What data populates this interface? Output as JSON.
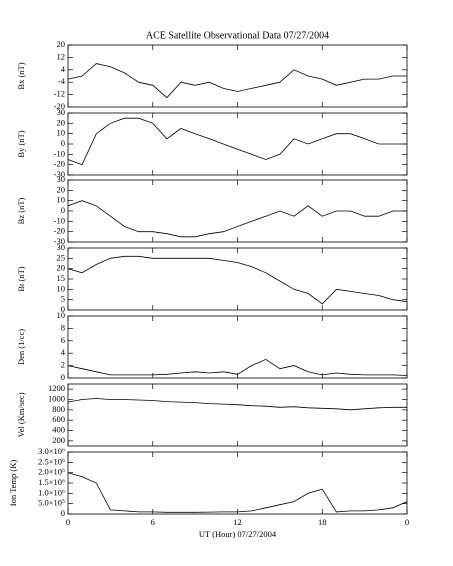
{
  "chart_data": [
    {
      "type": "line",
      "title": "ACE Satellite Observational Data   07/27/2004",
      "ylabel": "Bx (nT)",
      "x": [
        0,
        1,
        2,
        3,
        4,
        5,
        6,
        7,
        8,
        9,
        10,
        11,
        12,
        13,
        14,
        15,
        16,
        17,
        18,
        19,
        20,
        21,
        22,
        23,
        24
      ],
      "values": [
        -2,
        0,
        8,
        6,
        2,
        -4,
        -6,
        -14,
        -4,
        -6,
        -4,
        -8,
        -10,
        -8,
        -6,
        -4,
        4,
        0,
        -2,
        -6,
        -4,
        -2,
        -2,
        0,
        0
      ],
      "color": "#000000",
      "xlim": [
        0,
        24
      ],
      "xticks": [
        0,
        6,
        12,
        18,
        24
      ],
      "ylim": [
        -20,
        20
      ],
      "yticks": [
        -20,
        -12,
        -4,
        4,
        12,
        20
      ]
    },
    {
      "type": "line",
      "ylabel": "By (nT)",
      "x": [
        0,
        1,
        2,
        3,
        4,
        5,
        6,
        7,
        8,
        9,
        10,
        11,
        12,
        13,
        14,
        15,
        16,
        17,
        18,
        19,
        20,
        21,
        22,
        23,
        24
      ],
      "values": [
        -15,
        -20,
        10,
        20,
        25,
        25,
        20,
        5,
        15,
        10,
        5,
        0,
        -5,
        -10,
        -15,
        -10,
        5,
        0,
        5,
        10,
        10,
        5,
        0,
        0,
        0
      ],
      "color": "#000000",
      "xlim": [
        0,
        24
      ],
      "xticks": [
        0,
        6,
        12,
        18,
        24
      ],
      "ylim": [
        -30,
        30
      ],
      "yticks": [
        -30,
        -20,
        -10,
        0,
        10,
        20,
        30
      ]
    },
    {
      "type": "line",
      "ylabel": "Bz (nT)",
      "x": [
        0,
        1,
        2,
        3,
        4,
        5,
        6,
        7,
        8,
        9,
        10,
        11,
        12,
        13,
        14,
        15,
        16,
        17,
        18,
        19,
        20,
        21,
        22,
        23,
        24
      ],
      "values": [
        5,
        10,
        5,
        -5,
        -15,
        -20,
        -20,
        -22,
        -25,
        -25,
        -22,
        -20,
        -15,
        -10,
        -5,
        0,
        -5,
        5,
        -5,
        0,
        0,
        -5,
        -5,
        0,
        0
      ],
      "color": "#000000",
      "xlim": [
        0,
        24
      ],
      "xticks": [
        0,
        6,
        12,
        18,
        24
      ],
      "ylim": [
        -30,
        30
      ],
      "yticks": [
        -30,
        -20,
        -10,
        0,
        10,
        20,
        30
      ]
    },
    {
      "type": "line",
      "ylabel": "Bt (nT)",
      "x": [
        0,
        1,
        2,
        3,
        4,
        5,
        6,
        7,
        8,
        9,
        10,
        11,
        12,
        13,
        14,
        15,
        16,
        17,
        18,
        19,
        20,
        21,
        22,
        23,
        24
      ],
      "values": [
        20,
        18,
        22,
        25,
        26,
        26,
        25,
        25,
        25,
        25,
        25,
        24,
        23,
        21,
        18,
        14,
        10,
        8,
        3,
        10,
        9,
        8,
        7,
        5,
        4
      ],
      "color": "#000000",
      "xlim": [
        0,
        24
      ],
      "xticks": [
        0,
        6,
        12,
        18,
        24
      ],
      "ylim": [
        0,
        30
      ],
      "yticks": [
        0,
        5,
        10,
        15,
        20,
        25,
        30
      ]
    },
    {
      "type": "line",
      "ylabel": "Den (1/cc)",
      "x": [
        0,
        1,
        2,
        3,
        4,
        5,
        6,
        7,
        8,
        9,
        10,
        11,
        12,
        13,
        14,
        15,
        16,
        17,
        18,
        19,
        20,
        21,
        22,
        23,
        24
      ],
      "values": [
        2,
        1.5,
        1,
        0.5,
        0.5,
        0.5,
        0.5,
        0.6,
        0.8,
        1,
        0.8,
        1,
        0.6,
        2,
        3,
        1.5,
        2,
        1,
        0.5,
        0.8,
        0.6,
        0.5,
        0.5,
        0.5,
        0.4
      ],
      "color": "#000000",
      "xlim": [
        0,
        24
      ],
      "xticks": [
        0,
        6,
        12,
        18,
        24
      ],
      "ylim": [
        0,
        10
      ],
      "yticks": [
        0,
        2,
        4,
        6,
        8,
        10
      ]
    },
    {
      "type": "line",
      "ylabel": "Vel (Km/sec)",
      "x": [
        0,
        1,
        2,
        3,
        4,
        5,
        6,
        7,
        8,
        9,
        10,
        11,
        12,
        13,
        14,
        15,
        16,
        17,
        18,
        19,
        20,
        21,
        22,
        23,
        24
      ],
      "values": [
        950,
        1000,
        1020,
        1000,
        1000,
        990,
        980,
        960,
        950,
        940,
        920,
        910,
        900,
        880,
        870,
        850,
        860,
        840,
        830,
        820,
        800,
        820,
        840,
        850,
        850
      ],
      "color": "#000000",
      "xlim": [
        0,
        24
      ],
      "xticks": [
        0,
        6,
        12,
        18,
        24
      ],
      "ylim": [
        100,
        1300
      ],
      "yticks": [
        200,
        400,
        600,
        800,
        1000,
        1200
      ]
    },
    {
      "type": "line",
      "ylabel": "Ion Temp (K)",
      "xlabel": "UT (Hour)   07/27/2004",
      "x": [
        0,
        1,
        2,
        3,
        4,
        5,
        6,
        7,
        8,
        9,
        10,
        11,
        12,
        13,
        14,
        15,
        16,
        17,
        18,
        19,
        20,
        21,
        22,
        23,
        24
      ],
      "values": [
        2000000,
        1800000,
        1500000,
        200000,
        150000,
        100000,
        100000,
        80000,
        80000,
        80000,
        90000,
        100000,
        100000,
        150000,
        300000,
        450000,
        600000,
        1000000,
        1200000,
        100000,
        150000,
        150000,
        200000,
        300000,
        600000
      ],
      "color": "#000000",
      "xlim": [
        0,
        24
      ],
      "xticks": [
        0,
        6,
        12,
        18,
        {
          "value": 24,
          "label": "0"
        }
      ],
      "ylim": [
        0,
        3000000
      ],
      "yticks": [
        0,
        {
          "value": 500000,
          "label": "5.0×10⁵"
        },
        {
          "value": 1000000,
          "label": "1.0×10⁶"
        },
        {
          "value": 1500000,
          "label": "1.5×10⁶"
        },
        {
          "value": 2000000,
          "label": "2.0×10⁶"
        },
        {
          "value": 2500000,
          "label": "2.5×10⁶"
        },
        {
          "value": 3000000,
          "label": "3.0×10⁶"
        }
      ]
    }
  ]
}
